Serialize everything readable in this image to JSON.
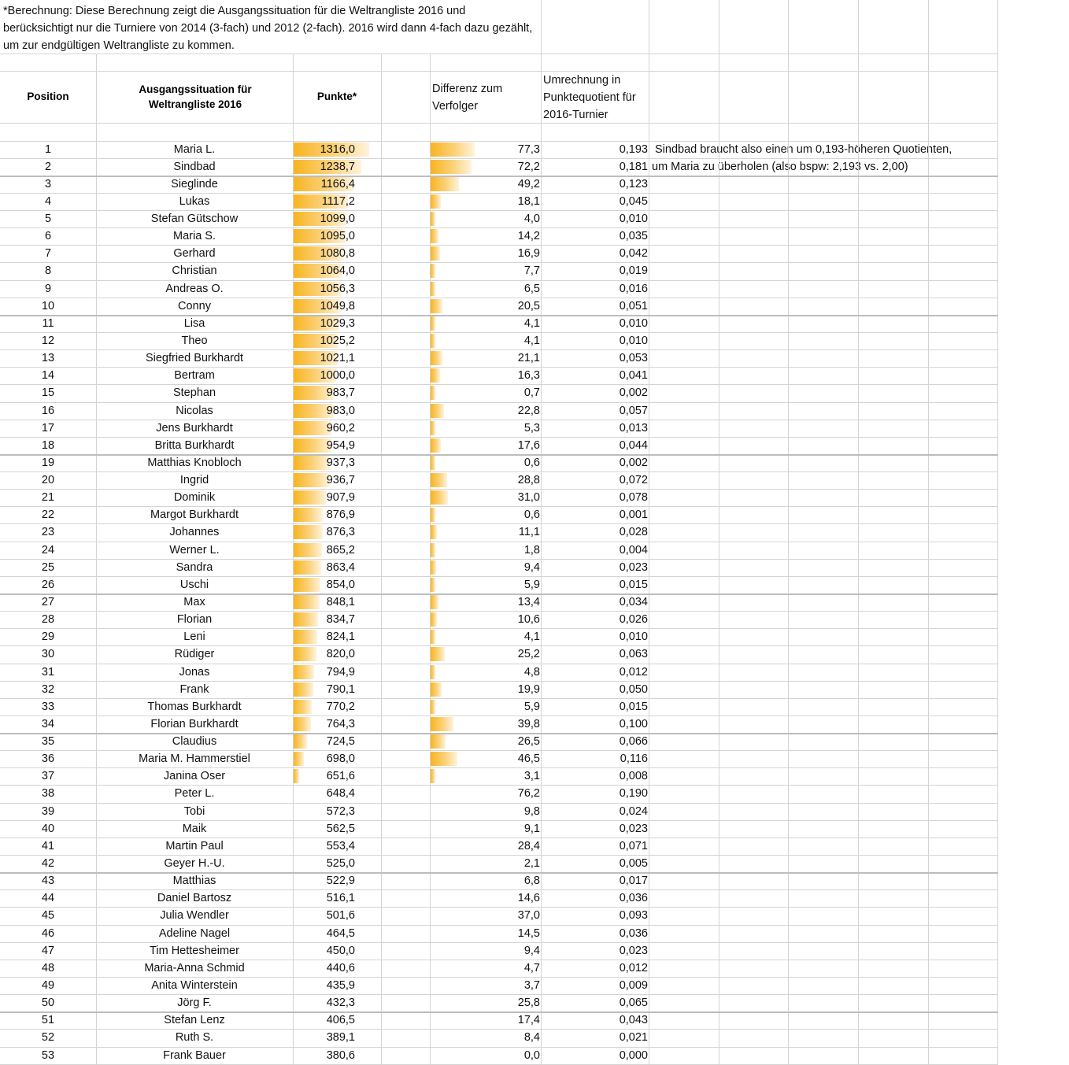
{
  "note": "*Berechnung: Diese Berechnung zeigt die Ausgangssituation für die Weltrangliste 2016 und berücksichtigt nur die Turniere von 2014 (3-fach) und 2012 (2-fach). 2016 wird dann 4-fach dazu gezählt, um zur endgültigen Weltrangliste zu kommen.",
  "headers": {
    "position": "Position",
    "name": "Ausgangssituation für Weltrangliste 2016",
    "punkte": "Punkte*",
    "differenz": "Differenz zum Verfolger",
    "umrechnung": "Umrechnung in Punktequotient für 2016-Turnier"
  },
  "comment": {
    "line1": "Sindbad braucht also einen um 0,193-höheren Quotienten,",
    "line2": "um Maria zu überholen (also bspw:  2,193 vs. 2,00)"
  },
  "colors": {
    "bar": "#f8b421",
    "grid": "#d4d4d4"
  },
  "rows": [
    {
      "pos": "1",
      "name": "Maria L.",
      "punkte": "1316,0",
      "diff": "77,3",
      "quot": "0,193"
    },
    {
      "pos": "2",
      "name": "Sindbad",
      "punkte": "1238,7",
      "diff": "72,2",
      "quot": "0,181"
    },
    {
      "pos": "3",
      "name": "Sieglinde",
      "punkte": "1166,4",
      "diff": "49,2",
      "quot": "0,123"
    },
    {
      "pos": "4",
      "name": "Lukas",
      "punkte": "1117,2",
      "diff": "18,1",
      "quot": "0,045"
    },
    {
      "pos": "5",
      "name": "Stefan Gütschow",
      "punkte": "1099,0",
      "diff": "4,0",
      "quot": "0,010"
    },
    {
      "pos": "6",
      "name": "Maria S.",
      "punkte": "1095,0",
      "diff": "14,2",
      "quot": "0,035"
    },
    {
      "pos": "7",
      "name": "Gerhard",
      "punkte": "1080,8",
      "diff": "16,9",
      "quot": "0,042"
    },
    {
      "pos": "8",
      "name": "Christian",
      "punkte": "1064,0",
      "diff": "7,7",
      "quot": "0,019"
    },
    {
      "pos": "9",
      "name": "Andreas O.",
      "punkte": "1056,3",
      "diff": "6,5",
      "quot": "0,016"
    },
    {
      "pos": "10",
      "name": "Conny",
      "punkte": "1049,8",
      "diff": "20,5",
      "quot": "0,051"
    },
    {
      "pos": "11",
      "name": "Lisa",
      "punkte": "1029,3",
      "diff": "4,1",
      "quot": "0,010"
    },
    {
      "pos": "12",
      "name": "Theo",
      "punkte": "1025,2",
      "diff": "4,1",
      "quot": "0,010"
    },
    {
      "pos": "13",
      "name": "Siegfried Burkhardt",
      "punkte": "1021,1",
      "diff": "21,1",
      "quot": "0,053"
    },
    {
      "pos": "14",
      "name": "Bertram",
      "punkte": "1000,0",
      "diff": "16,3",
      "quot": "0,041"
    },
    {
      "pos": "15",
      "name": "Stephan",
      "punkte": "983,7",
      "diff": "0,7",
      "quot": "0,002"
    },
    {
      "pos": "16",
      "name": "Nicolas",
      "punkte": "983,0",
      "diff": "22,8",
      "quot": "0,057"
    },
    {
      "pos": "17",
      "name": "Jens Burkhardt",
      "punkte": "960,2",
      "diff": "5,3",
      "quot": "0,013"
    },
    {
      "pos": "18",
      "name": "Britta Burkhardt",
      "punkte": "954,9",
      "diff": "17,6",
      "quot": "0,044"
    },
    {
      "pos": "19",
      "name": "Matthias Knobloch",
      "punkte": "937,3",
      "diff": "0,6",
      "quot": "0,002"
    },
    {
      "pos": "20",
      "name": "Ingrid",
      "punkte": "936,7",
      "diff": "28,8",
      "quot": "0,072"
    },
    {
      "pos": "21",
      "name": "Dominik",
      "punkte": "907,9",
      "diff": "31,0",
      "quot": "0,078"
    },
    {
      "pos": "22",
      "name": "Margot Burkhardt",
      "punkte": "876,9",
      "diff": "0,6",
      "quot": "0,001"
    },
    {
      "pos": "23",
      "name": "Johannes",
      "punkte": "876,3",
      "diff": "11,1",
      "quot": "0,028"
    },
    {
      "pos": "24",
      "name": "Werner L.",
      "punkte": "865,2",
      "diff": "1,8",
      "quot": "0,004"
    },
    {
      "pos": "25",
      "name": "Sandra",
      "punkte": "863,4",
      "diff": "9,4",
      "quot": "0,023"
    },
    {
      "pos": "26",
      "name": "Uschi",
      "punkte": "854,0",
      "diff": "5,9",
      "quot": "0,015"
    },
    {
      "pos": "27",
      "name": "Max",
      "punkte": "848,1",
      "diff": "13,4",
      "quot": "0,034"
    },
    {
      "pos": "28",
      "name": "Florian",
      "punkte": "834,7",
      "diff": "10,6",
      "quot": "0,026"
    },
    {
      "pos": "29",
      "name": "Leni",
      "punkte": "824,1",
      "diff": "4,1",
      "quot": "0,010"
    },
    {
      "pos": "30",
      "name": "Rüdiger",
      "punkte": "820,0",
      "diff": "25,2",
      "quot": "0,063"
    },
    {
      "pos": "31",
      "name": "Jonas",
      "punkte": "794,9",
      "diff": "4,8",
      "quot": "0,012"
    },
    {
      "pos": "32",
      "name": "Frank",
      "punkte": "790,1",
      "diff": "19,9",
      "quot": "0,050"
    },
    {
      "pos": "33",
      "name": "Thomas Burkhardt",
      "punkte": "770,2",
      "diff": "5,9",
      "quot": "0,015"
    },
    {
      "pos": "34",
      "name": "Florian Burkhardt",
      "punkte": "764,3",
      "diff": "39,8",
      "quot": "0,100"
    },
    {
      "pos": "35",
      "name": "Claudius",
      "punkte": "724,5",
      "diff": "26,5",
      "quot": "0,066"
    },
    {
      "pos": "36",
      "name": "Maria M. Hammerstiel",
      "punkte": "698,0",
      "diff": "46,5",
      "quot": "0,116"
    },
    {
      "pos": "37",
      "name": "Janina Oser",
      "punkte": "651,6",
      "diff": "3,1",
      "quot": "0,008"
    },
    {
      "pos": "38",
      "name": "Peter L.",
      "punkte": "648,4",
      "diff": "76,2",
      "quot": "0,190"
    },
    {
      "pos": "39",
      "name": "Tobi",
      "punkte": "572,3",
      "diff": "9,8",
      "quot": "0,024"
    },
    {
      "pos": "40",
      "name": "Maik",
      "punkte": "562,5",
      "diff": "9,1",
      "quot": "0,023"
    },
    {
      "pos": "41",
      "name": "Martin Paul",
      "punkte": "553,4",
      "diff": "28,4",
      "quot": "0,071"
    },
    {
      "pos": "42",
      "name": "Geyer H.-U.",
      "punkte": "525,0",
      "diff": "2,1",
      "quot": "0,005"
    },
    {
      "pos": "43",
      "name": "Matthias",
      "punkte": "522,9",
      "diff": "6,8",
      "quot": "0,017"
    },
    {
      "pos": "44",
      "name": "Daniel Bartosz",
      "punkte": "516,1",
      "diff": "14,6",
      "quot": "0,036"
    },
    {
      "pos": "45",
      "name": "Julia Wendler",
      "punkte": "501,6",
      "diff": "37,0",
      "quot": "0,093"
    },
    {
      "pos": "46",
      "name": "Adeline Nagel",
      "punkte": "464,5",
      "diff": "14,5",
      "quot": "0,036"
    },
    {
      "pos": "47",
      "name": "Tim Hettesheimer",
      "punkte": "450,0",
      "diff": "9,4",
      "quot": "0,023"
    },
    {
      "pos": "48",
      "name": "Maria-Anna Schmid",
      "punkte": "440,6",
      "diff": "4,7",
      "quot": "0,012"
    },
    {
      "pos": "49",
      "name": "Anita Winterstein",
      "punkte": "435,9",
      "diff": "3,7",
      "quot": "0,009"
    },
    {
      "pos": "50",
      "name": "Jörg F.",
      "punkte": "432,3",
      "diff": "25,8",
      "quot": "0,065"
    },
    {
      "pos": "51",
      "name": "Stefan Lenz",
      "punkte": "406,5",
      "diff": "17,4",
      "quot": "0,043"
    },
    {
      "pos": "52",
      "name": "Ruth S.",
      "punkte": "389,1",
      "diff": "8,4",
      "quot": "0,021"
    },
    {
      "pos": "53",
      "name": "Frank Bauer",
      "punkte": "380,6",
      "diff": "0,0",
      "quot": "0,000"
    }
  ]
}
